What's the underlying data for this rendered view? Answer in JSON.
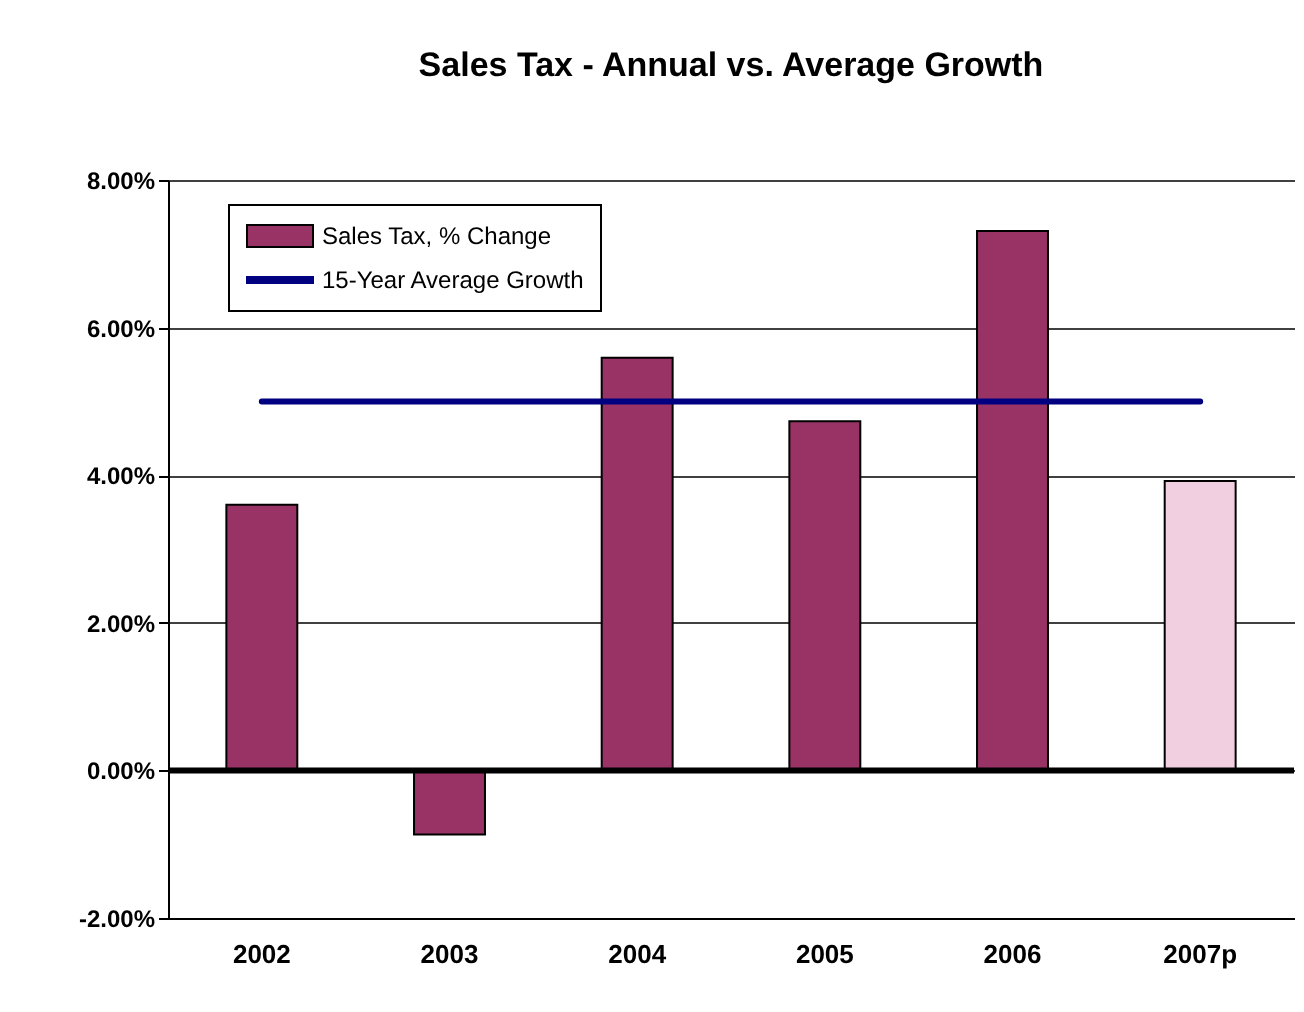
{
  "chart_data": {
    "type": "bar",
    "title": "Sales Tax - Annual vs. Average Growth",
    "categories": [
      "2002",
      "2003",
      "2004",
      "2005",
      "2006",
      "2007p"
    ],
    "series": [
      {
        "name": "Sales Tax, % Change",
        "color": "#993366",
        "colors": [
          "#993366",
          "#993366",
          "#993366",
          "#993366",
          "#993366",
          "#f2cfe0"
        ],
        "values": [
          3.6,
          -0.87,
          5.59,
          4.73,
          7.31,
          3.92
        ]
      },
      {
        "name": "15-Year Average Growth",
        "type": "line",
        "color": "#000080",
        "values": [
          5.0,
          5.0,
          5.0,
          5.0,
          5.0,
          5.0
        ]
      }
    ],
    "ylim": [
      -2,
      8
    ],
    "yticks": [
      {
        "value": -2,
        "label": "-2.00%"
      },
      {
        "value": 0,
        "label": "0.00%"
      },
      {
        "value": 2,
        "label": "2.00%"
      },
      {
        "value": 4,
        "label": "4.00%"
      },
      {
        "value": 6,
        "label": "6.00%"
      },
      {
        "value": 8,
        "label": "8.00%"
      }
    ],
    "ref_lines": [
      {
        "axis": "y",
        "value": 0,
        "color": "#000000"
      }
    ],
    "grid": "y",
    "legend": "top left",
    "marker": "none"
  }
}
